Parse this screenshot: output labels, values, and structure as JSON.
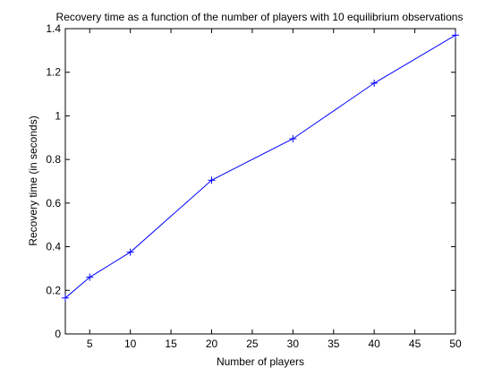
{
  "chart_data": {
    "type": "line",
    "title": "Recovery time as a function of the number of players with 10 equilibrium observations",
    "xlabel": "Number of players",
    "ylabel": "Recovery time (in seconds)",
    "xlim": [
      2,
      50
    ],
    "ylim": [
      0,
      1.4
    ],
    "xticks": [
      5,
      10,
      15,
      20,
      25,
      30,
      35,
      40,
      45,
      50
    ],
    "yticks": [
      0,
      0.2,
      0.4,
      0.6,
      0.8,
      1,
      1.2,
      1.4
    ],
    "xtick_labels": [
      "5",
      "10",
      "15",
      "20",
      "25",
      "30",
      "35",
      "40",
      "45",
      "50"
    ],
    "ytick_labels": [
      "0",
      "0.2",
      "0.4",
      "0.6",
      "0.8",
      "1",
      "1.2",
      "1.4"
    ],
    "grid": false,
    "legend": "none",
    "marker": "+",
    "series": [
      {
        "color": "#0000ff",
        "x": [
          2,
          5,
          10,
          20,
          30,
          40,
          50
        ],
        "y": [
          0.165,
          0.26,
          0.375,
          0.705,
          0.895,
          1.15,
          1.37
        ]
      }
    ]
  }
}
